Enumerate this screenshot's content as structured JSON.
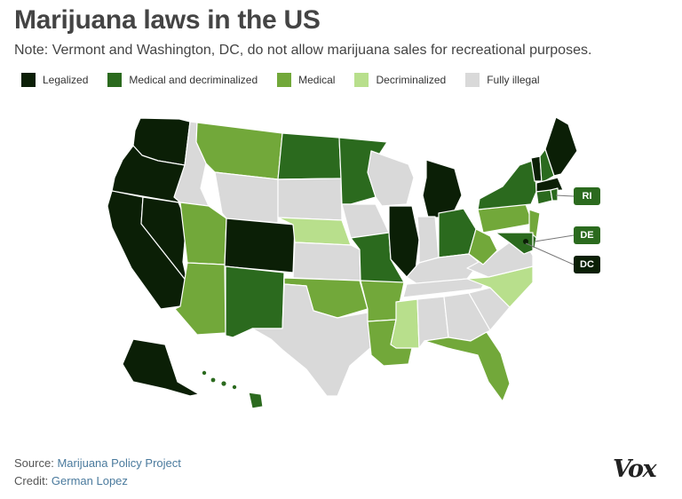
{
  "title": "Marijuana laws in the US",
  "subtitle": "Note: Vermont and Washington, DC, do not allow marijuana sales for recreational purposes.",
  "legend": [
    {
      "key": "legalized",
      "label": "Legalized",
      "color": "#0b1f06"
    },
    {
      "key": "medical_decrim",
      "label": "Medical and decriminalized",
      "color": "#2b6a1e"
    },
    {
      "key": "medical",
      "label": "Medical",
      "color": "#72a83a"
    },
    {
      "key": "decrim",
      "label": "Decriminalized",
      "color": "#b8df8c"
    },
    {
      "key": "illegal",
      "label": "Fully illegal",
      "color": "#d9d9d9"
    }
  ],
  "states": {
    "WA": "legalized",
    "OR": "legalized",
    "CA": "legalized",
    "NV": "legalized",
    "CO": "legalized",
    "AK": "legalized",
    "MI": "legalized",
    "IL": "legalized",
    "ME": "legalized",
    "VT": "legalized",
    "MA": "legalized",
    "DC": "legalized",
    "ID": "illegal",
    "MT": "medical",
    "WY": "illegal",
    "UT": "medical",
    "AZ": "medical",
    "NM": "medical_decrim",
    "ND": "medical_decrim",
    "SD": "illegal",
    "NE": "decrim",
    "KS": "illegal",
    "OK": "medical",
    "TX": "illegal",
    "MN": "medical_decrim",
    "IA": "illegal",
    "MO": "medical_decrim",
    "AR": "medical",
    "LA": "medical",
    "WI": "illegal",
    "IN": "illegal",
    "OH": "medical_decrim",
    "KY": "illegal",
    "TN": "illegal",
    "MS": "decrim",
    "AL": "illegal",
    "GA": "illegal",
    "FL": "medical",
    "SC": "illegal",
    "NC": "decrim",
    "VA": "illegal",
    "WV": "medical",
    "PA": "medical",
    "NY": "medical_decrim",
    "NH": "medical_decrim",
    "CT": "medical_decrim",
    "RI": "medical_decrim",
    "NJ": "medical",
    "DE": "medical_decrim",
    "MD": "medical_decrim",
    "HI": "medical_decrim"
  },
  "callouts": [
    {
      "state": "RI",
      "label": "RI",
      "color": "#2b6a1e"
    },
    {
      "state": "DE",
      "label": "DE",
      "color": "#2b6a1e"
    },
    {
      "state": "DC",
      "label": "DC",
      "color": "#0b1f06"
    }
  ],
  "footer": {
    "source_label": "Source:",
    "source_value": "Marijuana Policy Project",
    "credit_label": "Credit:",
    "credit_value": "German Lopez"
  },
  "brand": "Vox"
}
